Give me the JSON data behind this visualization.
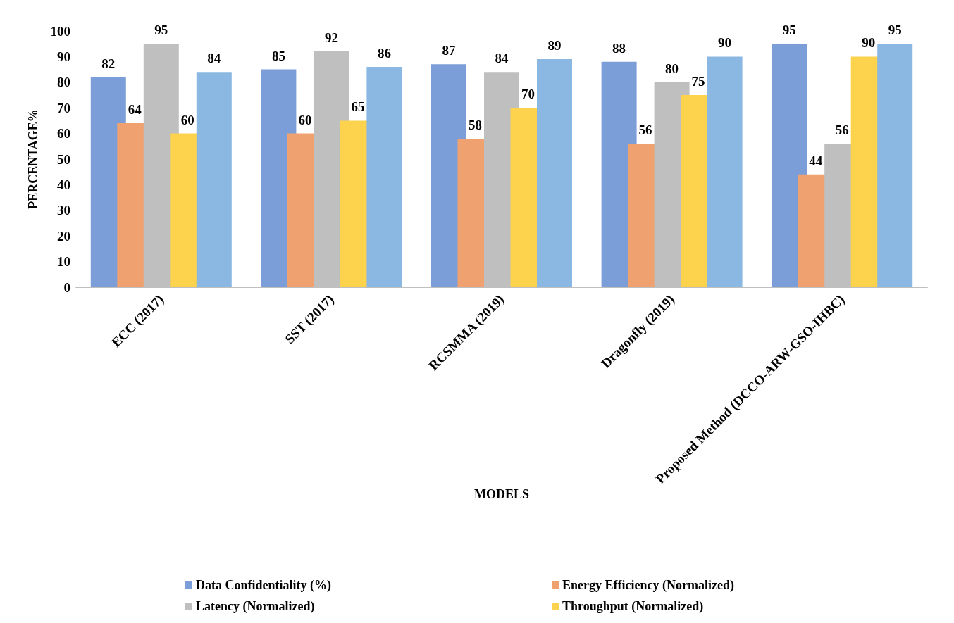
{
  "chart_data": {
    "type": "bar",
    "categories": [
      "ECC (2017)",
      "SST (2017)",
      "RCSMMA (2019)",
      "Dragonfly (2019)",
      "Proposed Method (DCCO-ARW-GSO-IHBC)"
    ],
    "xlabel": "MODELS",
    "ylabel": "PERCENTAGE%",
    "ylim": [
      0,
      100
    ],
    "yticks": [
      0,
      10,
      20,
      30,
      40,
      50,
      60,
      70,
      80,
      90,
      100
    ],
    "grid": false,
    "legend": "bottom",
    "data_labels": true,
    "series": [
      {
        "name": "Data Confidentiality (%)",
        "color": "#7b9ed8",
        "values": [
          82,
          85,
          87,
          88,
          95
        ]
      },
      {
        "name": "Energy Efficiency (Normalized)",
        "color": "#efa270",
        "values": [
          64,
          60,
          58,
          56,
          44
        ]
      },
      {
        "name": "Latency (Normalized)",
        "color": "#bfbfbf",
        "values": [
          95,
          92,
          84,
          80,
          56
        ]
      },
      {
        "name": "Throughput (Normalized)",
        "color": "#fdd24c",
        "values": [
          60,
          65,
          70,
          75,
          90
        ]
      },
      {
        "color": "#8ab8e2",
        "values": [
          84,
          86,
          89,
          90,
          95
        ]
      }
    ]
  }
}
